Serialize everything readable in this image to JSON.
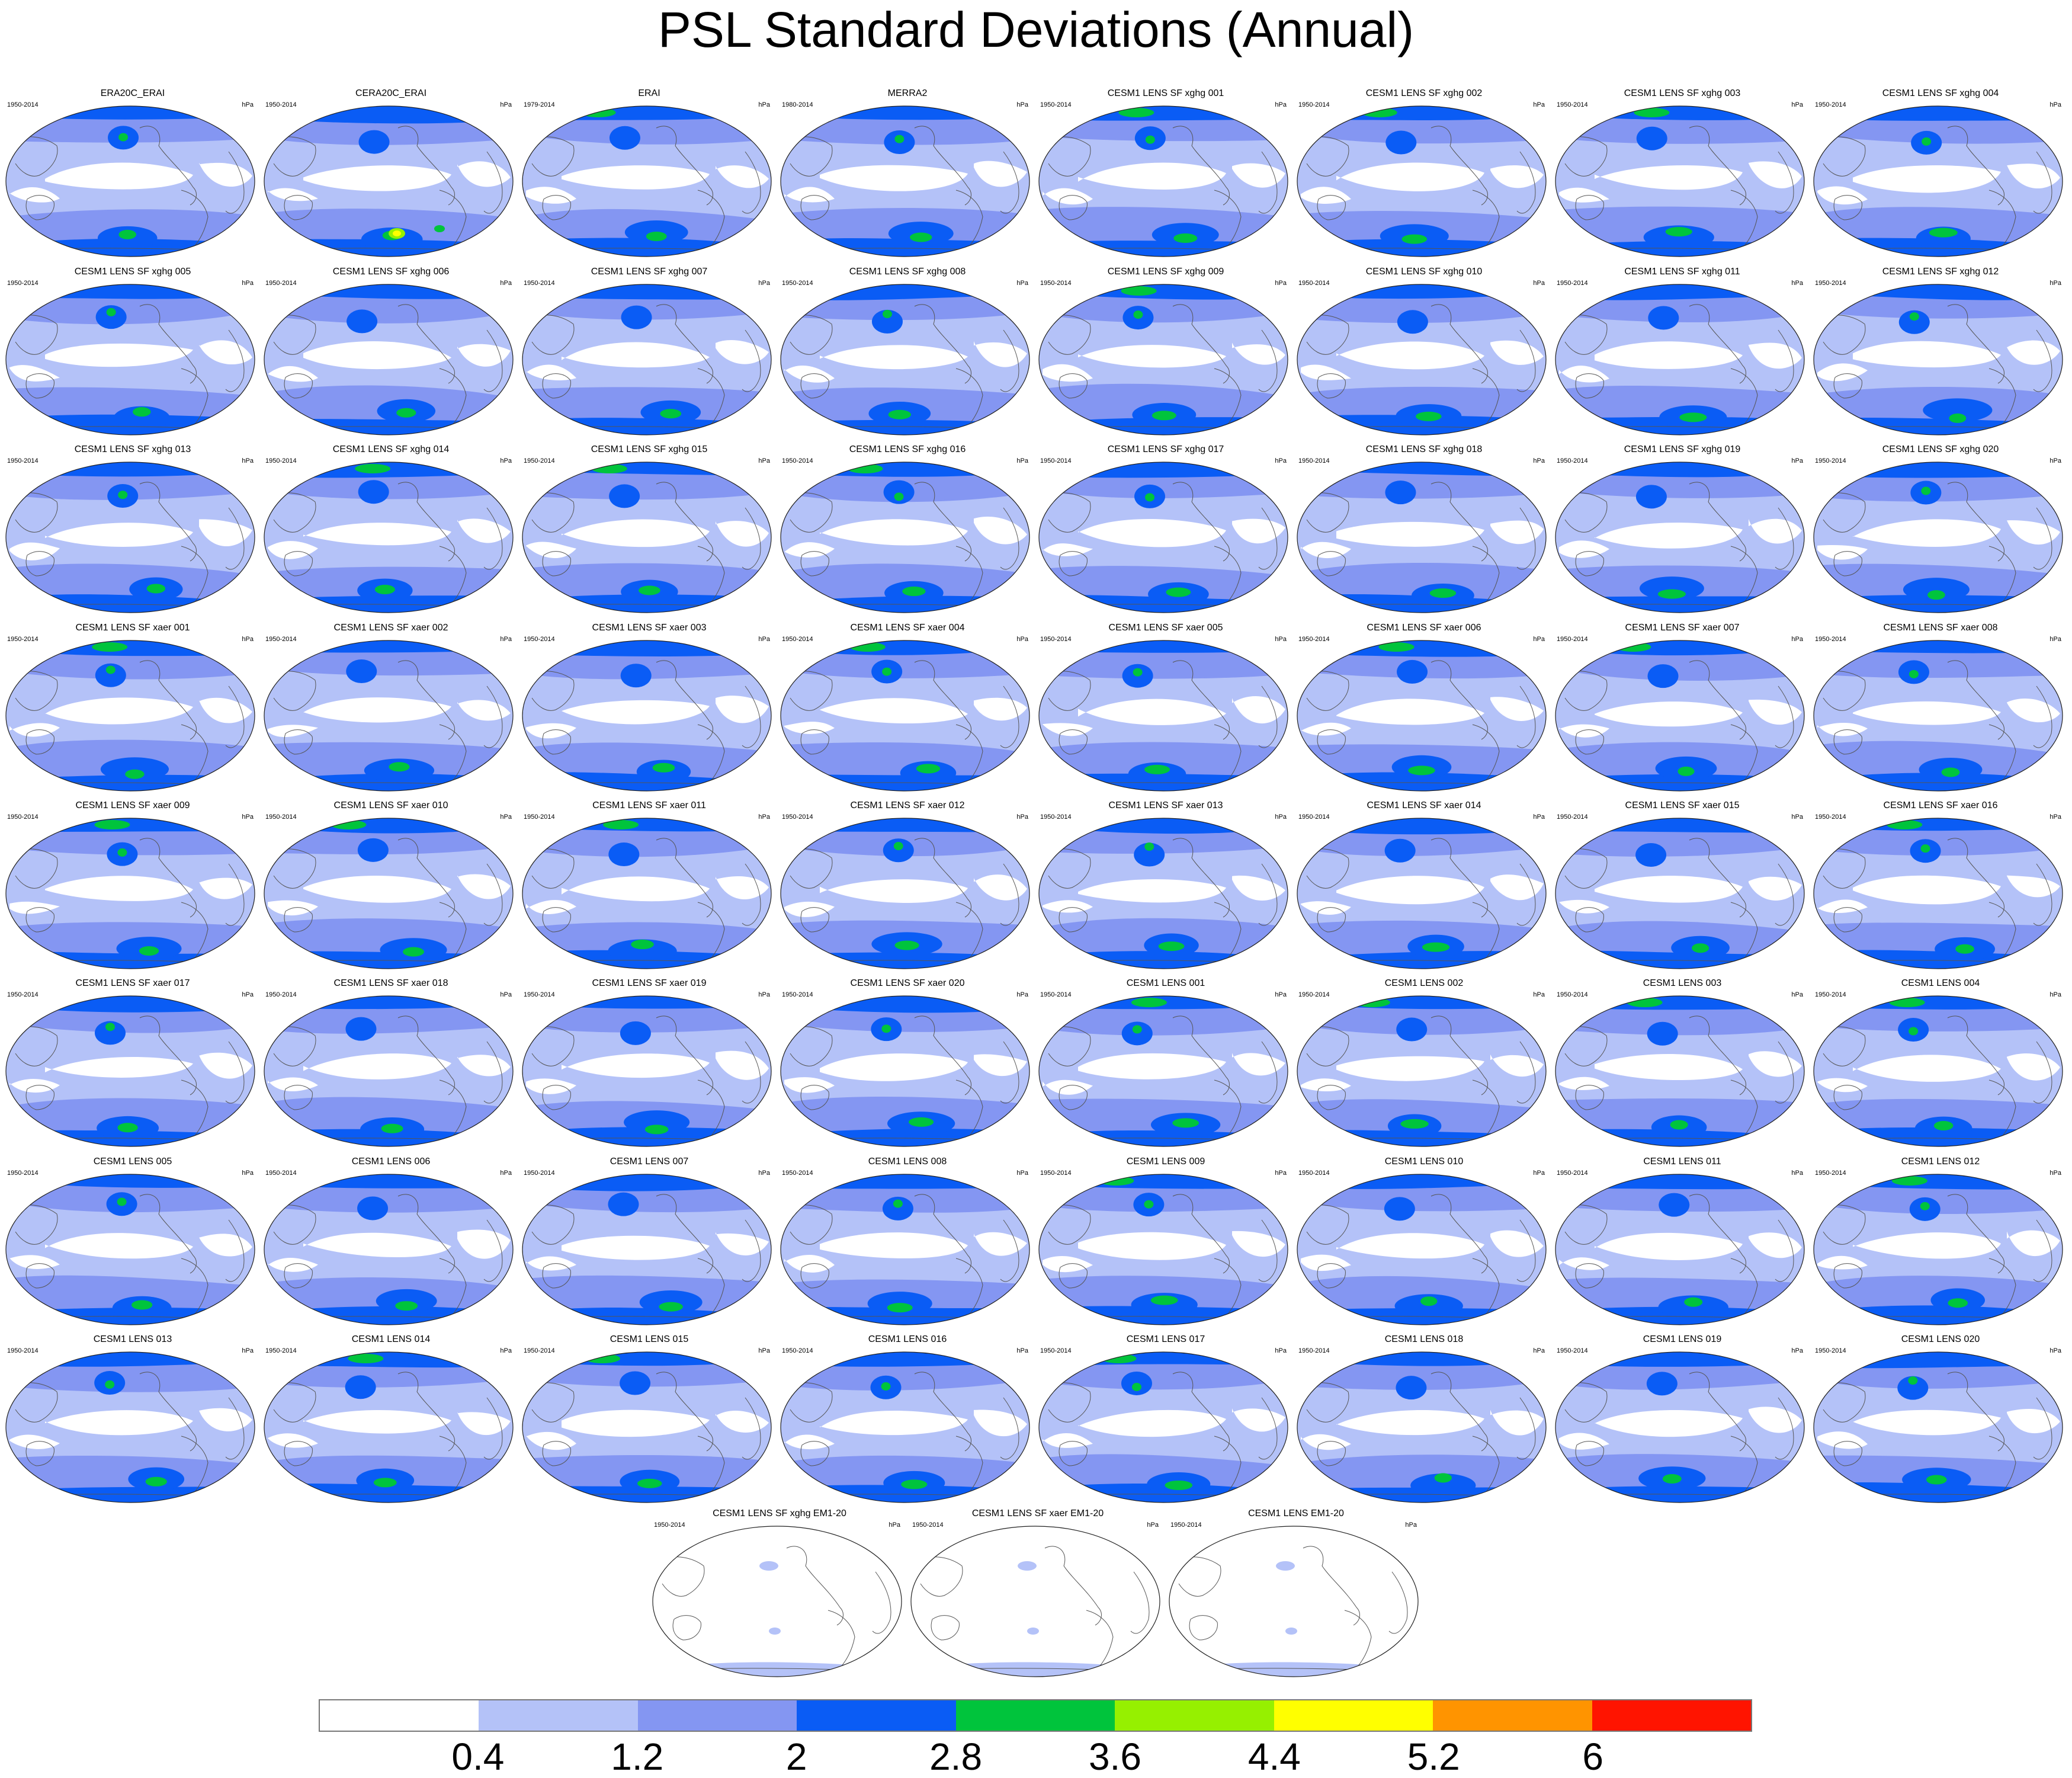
{
  "title": "PSL Standard Deviations (Annual)",
  "units": "hPa",
  "panels": [
    {
      "name": "ERA20C_ERAI",
      "years": "1950-2014"
    },
    {
      "name": "CERA20C_ERAI",
      "years": "1950-2014"
    },
    {
      "name": "ERAI",
      "years": "1979-2014"
    },
    {
      "name": "MERRA2",
      "years": "1980-2014"
    },
    {
      "name": "CESM1 LENS SF xghg 001",
      "years": "1950-2014"
    },
    {
      "name": "CESM1 LENS SF xghg 002",
      "years": "1950-2014"
    },
    {
      "name": "CESM1 LENS SF xghg 003",
      "years": "1950-2014"
    },
    {
      "name": "CESM1 LENS SF xghg 004",
      "years": "1950-2014"
    },
    {
      "name": "CESM1 LENS SF xghg 005",
      "years": "1950-2014"
    },
    {
      "name": "CESM1 LENS SF xghg 006",
      "years": "1950-2014"
    },
    {
      "name": "CESM1 LENS SF xghg 007",
      "years": "1950-2014"
    },
    {
      "name": "CESM1 LENS SF xghg 008",
      "years": "1950-2014"
    },
    {
      "name": "CESM1 LENS SF xghg 009",
      "years": "1950-2014"
    },
    {
      "name": "CESM1 LENS SF xghg 010",
      "years": "1950-2014"
    },
    {
      "name": "CESM1 LENS SF xghg 011",
      "years": "1950-2014"
    },
    {
      "name": "CESM1 LENS SF xghg 012",
      "years": "1950-2014"
    },
    {
      "name": "CESM1 LENS SF xghg 013",
      "years": "1950-2014"
    },
    {
      "name": "CESM1 LENS SF xghg 014",
      "years": "1950-2014"
    },
    {
      "name": "CESM1 LENS SF xghg 015",
      "years": "1950-2014"
    },
    {
      "name": "CESM1 LENS SF xghg 016",
      "years": "1950-2014"
    },
    {
      "name": "CESM1 LENS SF xghg 017",
      "years": "1950-2014"
    },
    {
      "name": "CESM1 LENS SF xghg 018",
      "years": "1950-2014"
    },
    {
      "name": "CESM1 LENS SF xghg 019",
      "years": "1950-2014"
    },
    {
      "name": "CESM1 LENS SF xghg 020",
      "years": "1950-2014"
    },
    {
      "name": "CESM1 LENS SF xaer 001",
      "years": "1950-2014"
    },
    {
      "name": "CESM1 LENS SF xaer 002",
      "years": "1950-2014"
    },
    {
      "name": "CESM1 LENS SF xaer 003",
      "years": "1950-2014"
    },
    {
      "name": "CESM1 LENS SF xaer 004",
      "years": "1950-2014"
    },
    {
      "name": "CESM1 LENS SF xaer 005",
      "years": "1950-2014"
    },
    {
      "name": "CESM1 LENS SF xaer 006",
      "years": "1950-2014"
    },
    {
      "name": "CESM1 LENS SF xaer 007",
      "years": "1950-2014"
    },
    {
      "name": "CESM1 LENS SF xaer 008",
      "years": "1950-2014"
    },
    {
      "name": "CESM1 LENS SF xaer 009",
      "years": "1950-2014"
    },
    {
      "name": "CESM1 LENS SF xaer 010",
      "years": "1950-2014"
    },
    {
      "name": "CESM1 LENS SF xaer 011",
      "years": "1950-2014"
    },
    {
      "name": "CESM1 LENS SF xaer 012",
      "years": "1950-2014"
    },
    {
      "name": "CESM1 LENS SF xaer 013",
      "years": "1950-2014"
    },
    {
      "name": "CESM1 LENS SF xaer 014",
      "years": "1950-2014"
    },
    {
      "name": "CESM1 LENS SF xaer 015",
      "years": "1950-2014"
    },
    {
      "name": "CESM1 LENS SF xaer 016",
      "years": "1950-2014"
    },
    {
      "name": "CESM1 LENS SF xaer 017",
      "years": "1950-2014"
    },
    {
      "name": "CESM1 LENS SF xaer 018",
      "years": "1950-2014"
    },
    {
      "name": "CESM1 LENS SF xaer 019",
      "years": "1950-2014"
    },
    {
      "name": "CESM1 LENS SF xaer 020",
      "years": "1950-2014"
    },
    {
      "name": "CESM1 LENS 001",
      "years": "1950-2014"
    },
    {
      "name": "CESM1 LENS 002",
      "years": "1950-2014"
    },
    {
      "name": "CESM1 LENS 003",
      "years": "1950-2014"
    },
    {
      "name": "CESM1 LENS 004",
      "years": "1950-2014"
    },
    {
      "name": "CESM1 LENS 005",
      "years": "1950-2014"
    },
    {
      "name": "CESM1 LENS 006",
      "years": "1950-2014"
    },
    {
      "name": "CESM1 LENS 007",
      "years": "1950-2014"
    },
    {
      "name": "CESM1 LENS 008",
      "years": "1950-2014"
    },
    {
      "name": "CESM1 LENS 009",
      "years": "1950-2014"
    },
    {
      "name": "CESM1 LENS 010",
      "years": "1950-2014"
    },
    {
      "name": "CESM1 LENS 011",
      "years": "1950-2014"
    },
    {
      "name": "CESM1 LENS 012",
      "years": "1950-2014"
    },
    {
      "name": "CESM1 LENS 013",
      "years": "1950-2014"
    },
    {
      "name": "CESM1 LENS 014",
      "years": "1950-2014"
    },
    {
      "name": "CESM1 LENS 015",
      "years": "1950-2014"
    },
    {
      "name": "CESM1 LENS 016",
      "years": "1950-2014"
    },
    {
      "name": "CESM1 LENS 017",
      "years": "1950-2014"
    },
    {
      "name": "CESM1 LENS 018",
      "years": "1950-2014"
    },
    {
      "name": "CESM1 LENS 019",
      "years": "1950-2014"
    },
    {
      "name": "CESM1 LENS 020",
      "years": "1950-2014"
    },
    {
      "name": "CESM1 LENS SF xghg EM1-20",
      "years": "1950-2014"
    },
    {
      "name": "CESM1 LENS SF xaer EM1-20",
      "years": "1950-2014"
    },
    {
      "name": "CESM1 LENS EM1-20",
      "years": "1950-2014"
    }
  ],
  "legend": {
    "labels": [
      "0.4",
      "1.2",
      "2",
      "2.8",
      "3.6",
      "4.4",
      "5.2",
      "6"
    ],
    "colors": [
      "#ffffff",
      "#b4c2f8",
      "#8496f2",
      "#0a5cf5",
      "#00c43c",
      "#96f000",
      "#ffff00",
      "#ff9400",
      "#ff1400"
    ]
  }
}
